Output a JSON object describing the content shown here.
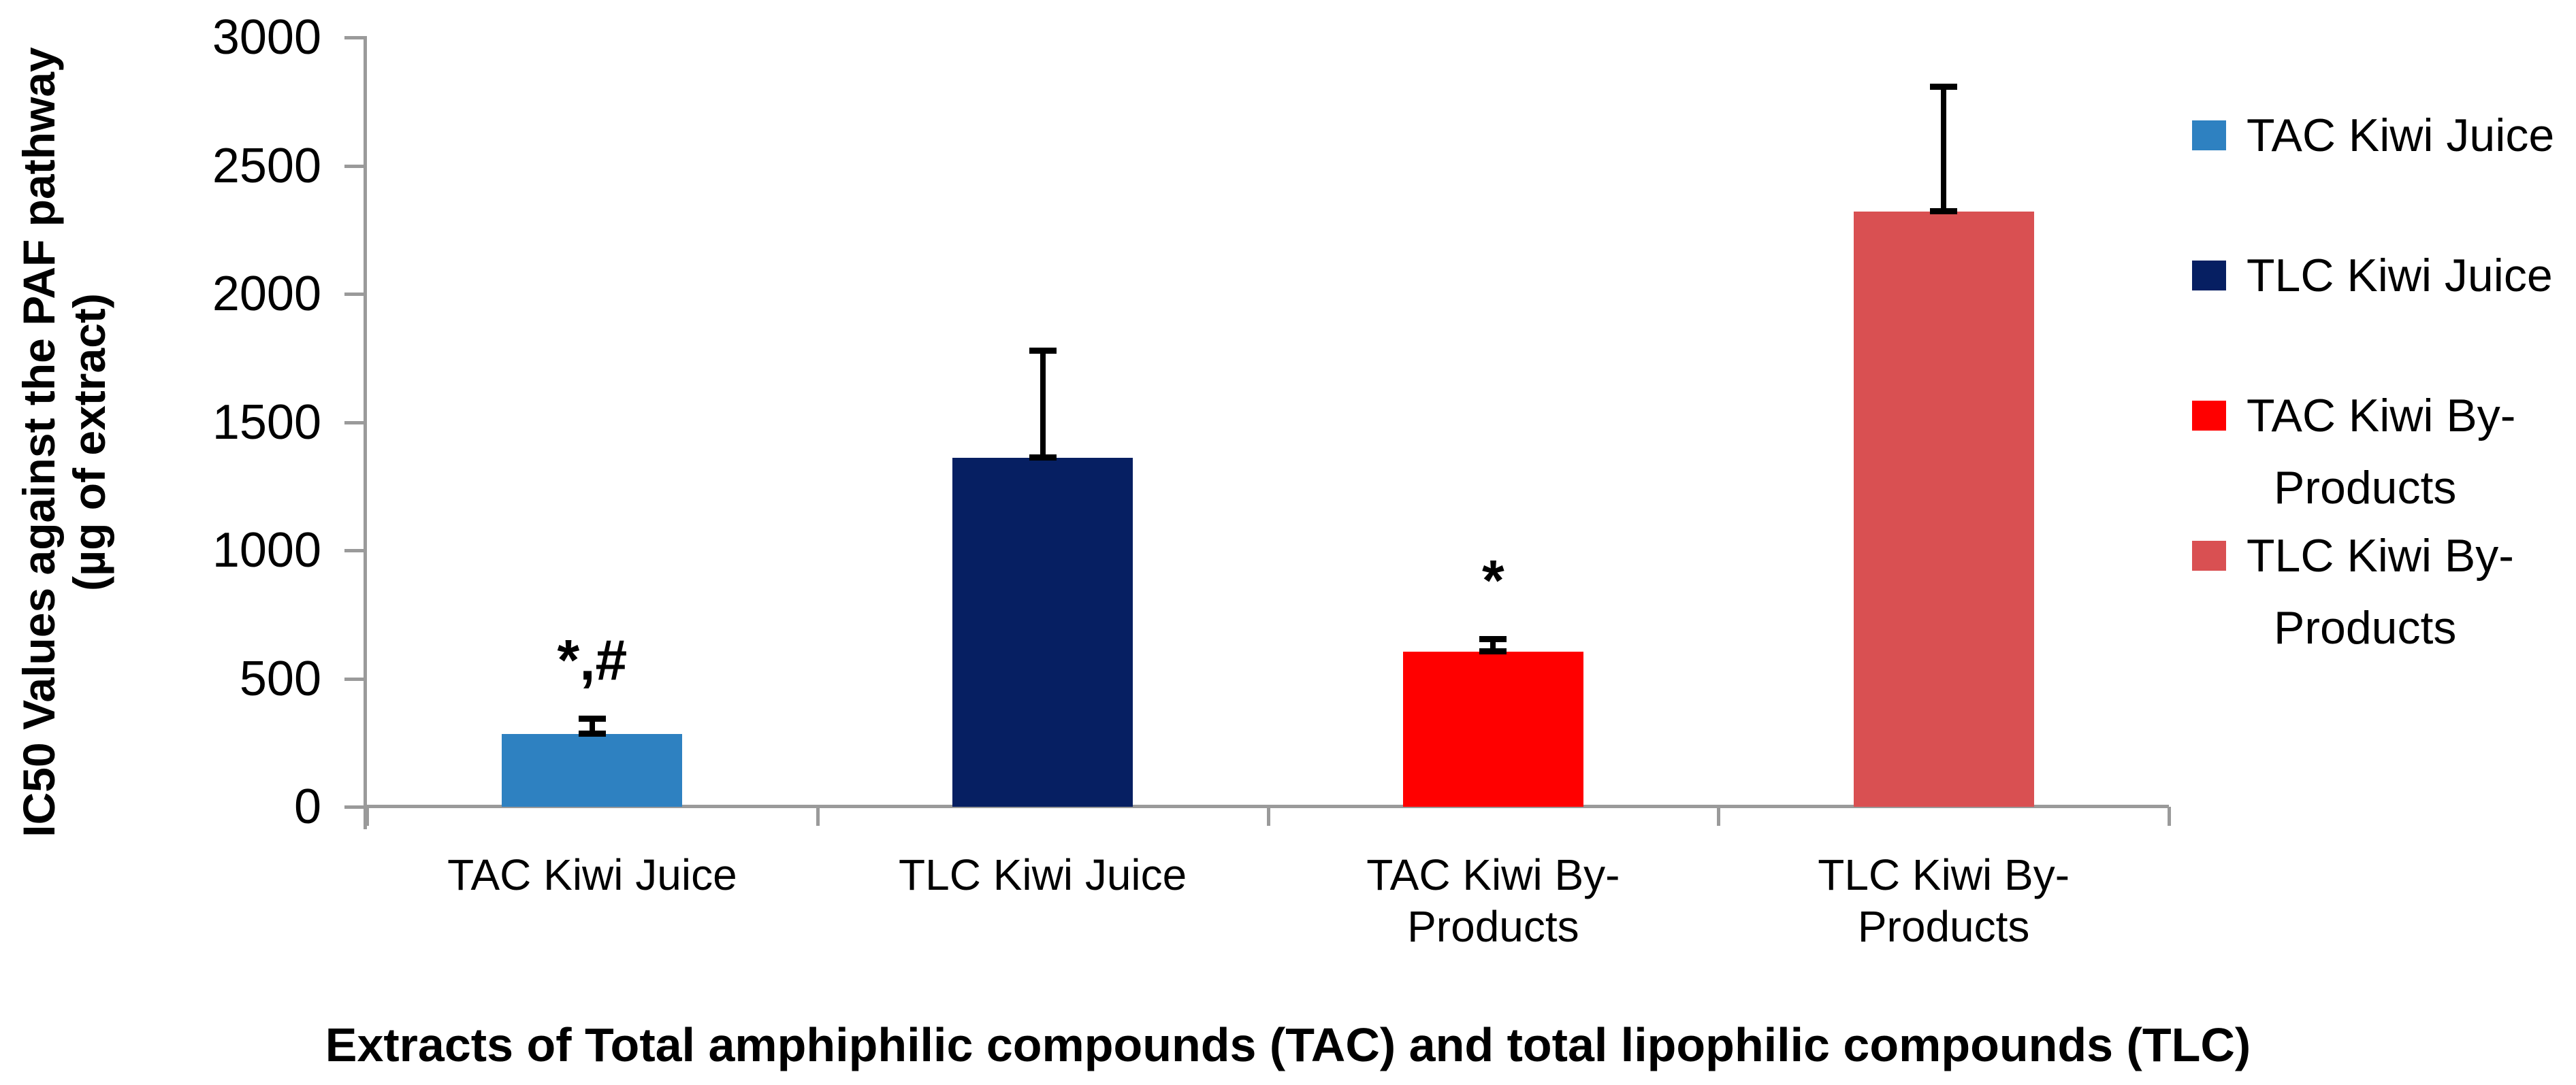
{
  "chart_data": {
    "type": "bar",
    "title": "",
    "xlabel": "Extracts of Total amphiphilic compounds (TAC) and total lipophilic compounds (TLC)",
    "ylabel": "IC50 Values against the PAF pathway",
    "ylabel_line2": "(µg of extract)",
    "ylim": [
      0,
      3000
    ],
    "yticks": [
      0,
      500,
      1000,
      1500,
      2000,
      2500,
      3000
    ],
    "grid": false,
    "legend_position": "right",
    "background_color": "#FFFFFF",
    "axis_color": "#9A9A9A",
    "error_bar_color": "#000000",
    "bars": [
      {
        "category": "TAC Kiwi Juice",
        "value": 285,
        "error_plus": 60,
        "annotation": "*,#",
        "color": "#2E81C1"
      },
      {
        "category": "TLC Kiwi Juice",
        "value": 1360,
        "error_plus": 420,
        "annotation": "",
        "color": "#061F62"
      },
      {
        "category": "TAC Kiwi By-\nProducts",
        "value": 605,
        "error_plus": 50,
        "annotation": "*",
        "color": "#FF0000"
      },
      {
        "category": "TLC Kiwi By-\nProducts",
        "value": 2320,
        "error_plus": 490,
        "annotation": "",
        "color": "#D95052"
      }
    ],
    "legend": [
      {
        "label": "TAC Kiwi Juice",
        "color": "#2E81C1"
      },
      {
        "label": "TLC Kiwi Juice",
        "color": "#061F62"
      },
      {
        "label": "TAC Kiwi By-\nProducts",
        "color": "#FF0000"
      },
      {
        "label": "TLC Kiwi By-\nProducts",
        "color": "#D95052"
      }
    ]
  }
}
